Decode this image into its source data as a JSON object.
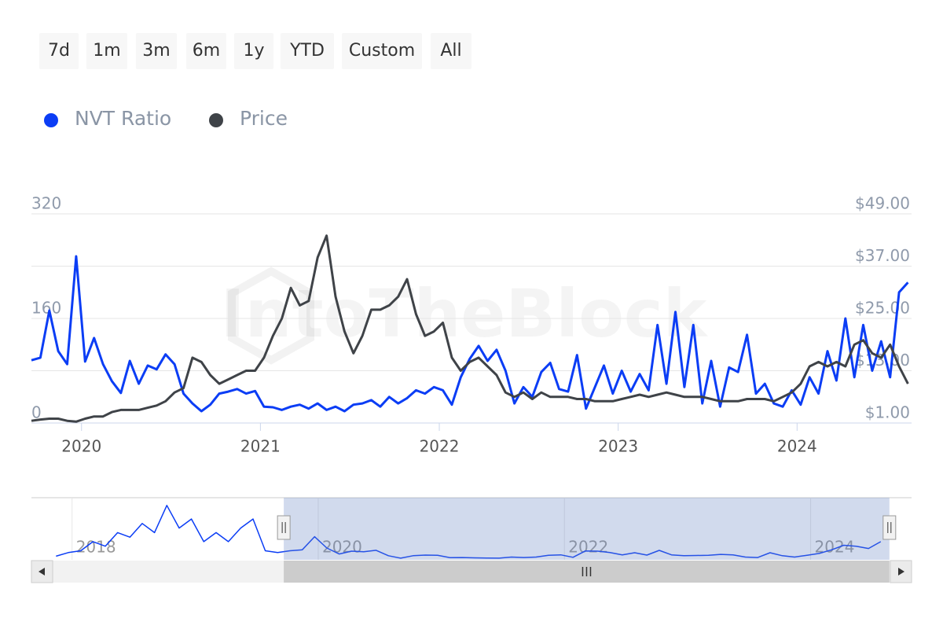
{
  "range_buttons": [
    "7d",
    "1m",
    "3m",
    "6m",
    "1y",
    "YTD",
    "Custom",
    "All"
  ],
  "watermark": "IntoTheBlock",
  "chart_data": [
    {
      "type": "line",
      "x": [
        2019.72,
        2019.77,
        2019.82,
        2019.87,
        2019.92,
        2019.97,
        2020.02,
        2020.07,
        2020.12,
        2020.17,
        2020.22,
        2020.27,
        2020.32,
        2020.37,
        2020.42,
        2020.47,
        2020.52,
        2020.57,
        2020.62,
        2020.67,
        2020.72,
        2020.77,
        2020.82,
        2020.87,
        2020.92,
        2020.97,
        2021.02,
        2021.07,
        2021.12,
        2021.17,
        2021.22,
        2021.27,
        2021.32,
        2021.37,
        2021.42,
        2021.47,
        2021.52,
        2021.57,
        2021.62,
        2021.67,
        2021.72,
        2021.77,
        2021.82,
        2021.87,
        2021.92,
        2021.97,
        2022.02,
        2022.07,
        2022.12,
        2022.17,
        2022.22,
        2022.27,
        2022.32,
        2022.37,
        2022.42,
        2022.47,
        2022.52,
        2022.57,
        2022.62,
        2022.67,
        2022.72,
        2022.77,
        2022.82,
        2022.87,
        2022.92,
        2022.97,
        2023.02,
        2023.07,
        2023.12,
        2023.17,
        2023.22,
        2023.27,
        2023.32,
        2023.37,
        2023.42,
        2023.47,
        2023.52,
        2023.57,
        2023.62,
        2023.67,
        2023.72,
        2023.77,
        2023.82,
        2023.87,
        2023.92,
        2023.97,
        2024.02,
        2024.07,
        2024.12,
        2024.17,
        2024.22,
        2024.27,
        2024.32,
        2024.37,
        2024.42,
        2024.47,
        2024.52,
        2024.57,
        2024.62
      ],
      "series": [
        {
          "name": "NVT Ratio",
          "color": "#0b3df5",
          "values": [
            96,
            100,
            172,
            110,
            90,
            255,
            94,
            130,
            90,
            64,
            46,
            95,
            60,
            88,
            82,
            105,
            90,
            45,
            30,
            18,
            28,
            45,
            48,
            52,
            45,
            49,
            25,
            24,
            20,
            25,
            28,
            22,
            30,
            20,
            25,
            18,
            28,
            30,
            35,
            25,
            40,
            30,
            38,
            50,
            45,
            55,
            50,
            28,
            70,
            98,
            118,
            95,
            112,
            80,
            30,
            55,
            40,
            78,
            92,
            52,
            48,
            104,
            22,
            55,
            88,
            45,
            80,
            48,
            75,
            50,
            150,
            60,
            170,
            55,
            150,
            30,
            95,
            25,
            85,
            78,
            135,
            45,
            60,
            30,
            25,
            50,
            28,
            70,
            45,
            110,
            65,
            160,
            70,
            150,
            80,
            125,
            70,
            200,
            215
          ]
        },
        {
          "name": "Price",
          "color": "#3f4348",
          "axis": "y2",
          "values": [
            1.5,
            1.8,
            2.0,
            2.0,
            1.5,
            1.3,
            2,
            2.5,
            2.5,
            3.5,
            4,
            4,
            4,
            4.5,
            5,
            6,
            8,
            9,
            16,
            15,
            12,
            10,
            11,
            12,
            13,
            13,
            16,
            21,
            25,
            32,
            28,
            29,
            39,
            44,
            30,
            22,
            17,
            21,
            27,
            27,
            28,
            30,
            34,
            26,
            21,
            22,
            24,
            16,
            13,
            15,
            16,
            14,
            12,
            8,
            7,
            8,
            6.5,
            8,
            7,
            7,
            7,
            6.5,
            6.5,
            6,
            6,
            6,
            6.5,
            7,
            7.5,
            7,
            7.5,
            8,
            7.5,
            7,
            7,
            7,
            6.5,
            6,
            6,
            6,
            6.5,
            6.5,
            6.5,
            6,
            7,
            8,
            10,
            14,
            15,
            14,
            15,
            14,
            19,
            20,
            17,
            16,
            19,
            14,
            10
          ]
        }
      ],
      "xlim": [
        2019.72,
        2024.64
      ],
      "xticks": [
        2020,
        2021,
        2022,
        2023,
        2024
      ],
      "ylim": [
        0,
        320
      ],
      "yticks": [
        0,
        160,
        320
      ],
      "y2lim": [
        1,
        49
      ],
      "y2ticks": [
        {
          "value": 1,
          "label": "$1.00"
        },
        {
          "value": 13,
          "label": "$13.00"
        },
        {
          "value": 25,
          "label": "$25.00"
        },
        {
          "value": 37,
          "label": "$37.00"
        },
        {
          "value": 49,
          "label": "$49.00"
        }
      ],
      "grid": true
    },
    {
      "type": "line",
      "x": [
        2017.87,
        2017.97,
        2018.07,
        2018.17,
        2018.27,
        2018.37,
        2018.47,
        2018.57,
        2018.67,
        2018.77,
        2018.87,
        2018.97,
        2019.07,
        2019.17,
        2019.27,
        2019.37,
        2019.47,
        2019.57,
        2019.67,
        2019.77,
        2019.87,
        2019.97,
        2020.07,
        2020.17,
        2020.27,
        2020.37,
        2020.47,
        2020.57,
        2020.67,
        2020.77,
        2020.87,
        2020.97,
        2021.07,
        2021.17,
        2021.27,
        2021.37,
        2021.47,
        2021.57,
        2021.67,
        2021.77,
        2021.87,
        2021.97,
        2022.07,
        2022.17,
        2022.27,
        2022.37,
        2022.47,
        2022.57,
        2022.67,
        2022.77,
        2022.87,
        2022.97,
        2023.07,
        2023.17,
        2023.27,
        2023.37,
        2023.47,
        2023.57,
        2023.67,
        2023.77,
        2023.87,
        2023.97,
        2024.07,
        2024.17,
        2024.27,
        2024.37,
        2024.47,
        2024.57
      ],
      "series": [
        {
          "color": "#0b3df5",
          "values": [
            40,
            80,
            100,
            200,
            150,
            300,
            250,
            400,
            300,
            600,
            350,
            450,
            200,
            300,
            200,
            350,
            450,
            100,
            80,
            100,
            110,
            255,
            130,
            64,
            95,
            88,
            105,
            45,
            18,
            45,
            52,
            49,
            24,
            25,
            22,
            20,
            18,
            30,
            25,
            30,
            50,
            55,
            28,
            98,
            95,
            80,
            55,
            78,
            52,
            104,
            55,
            45,
            48,
            50,
            60,
            55,
            30,
            25,
            78,
            45,
            30,
            50,
            70,
            110,
            160,
            150,
            125,
            200
          ]
        }
      ],
      "xlim": [
        2017.67,
        2024.82
      ],
      "xticks": [
        2018,
        2020,
        2022,
        2024
      ],
      "ylim": [
        0,
        650
      ]
    }
  ]
}
